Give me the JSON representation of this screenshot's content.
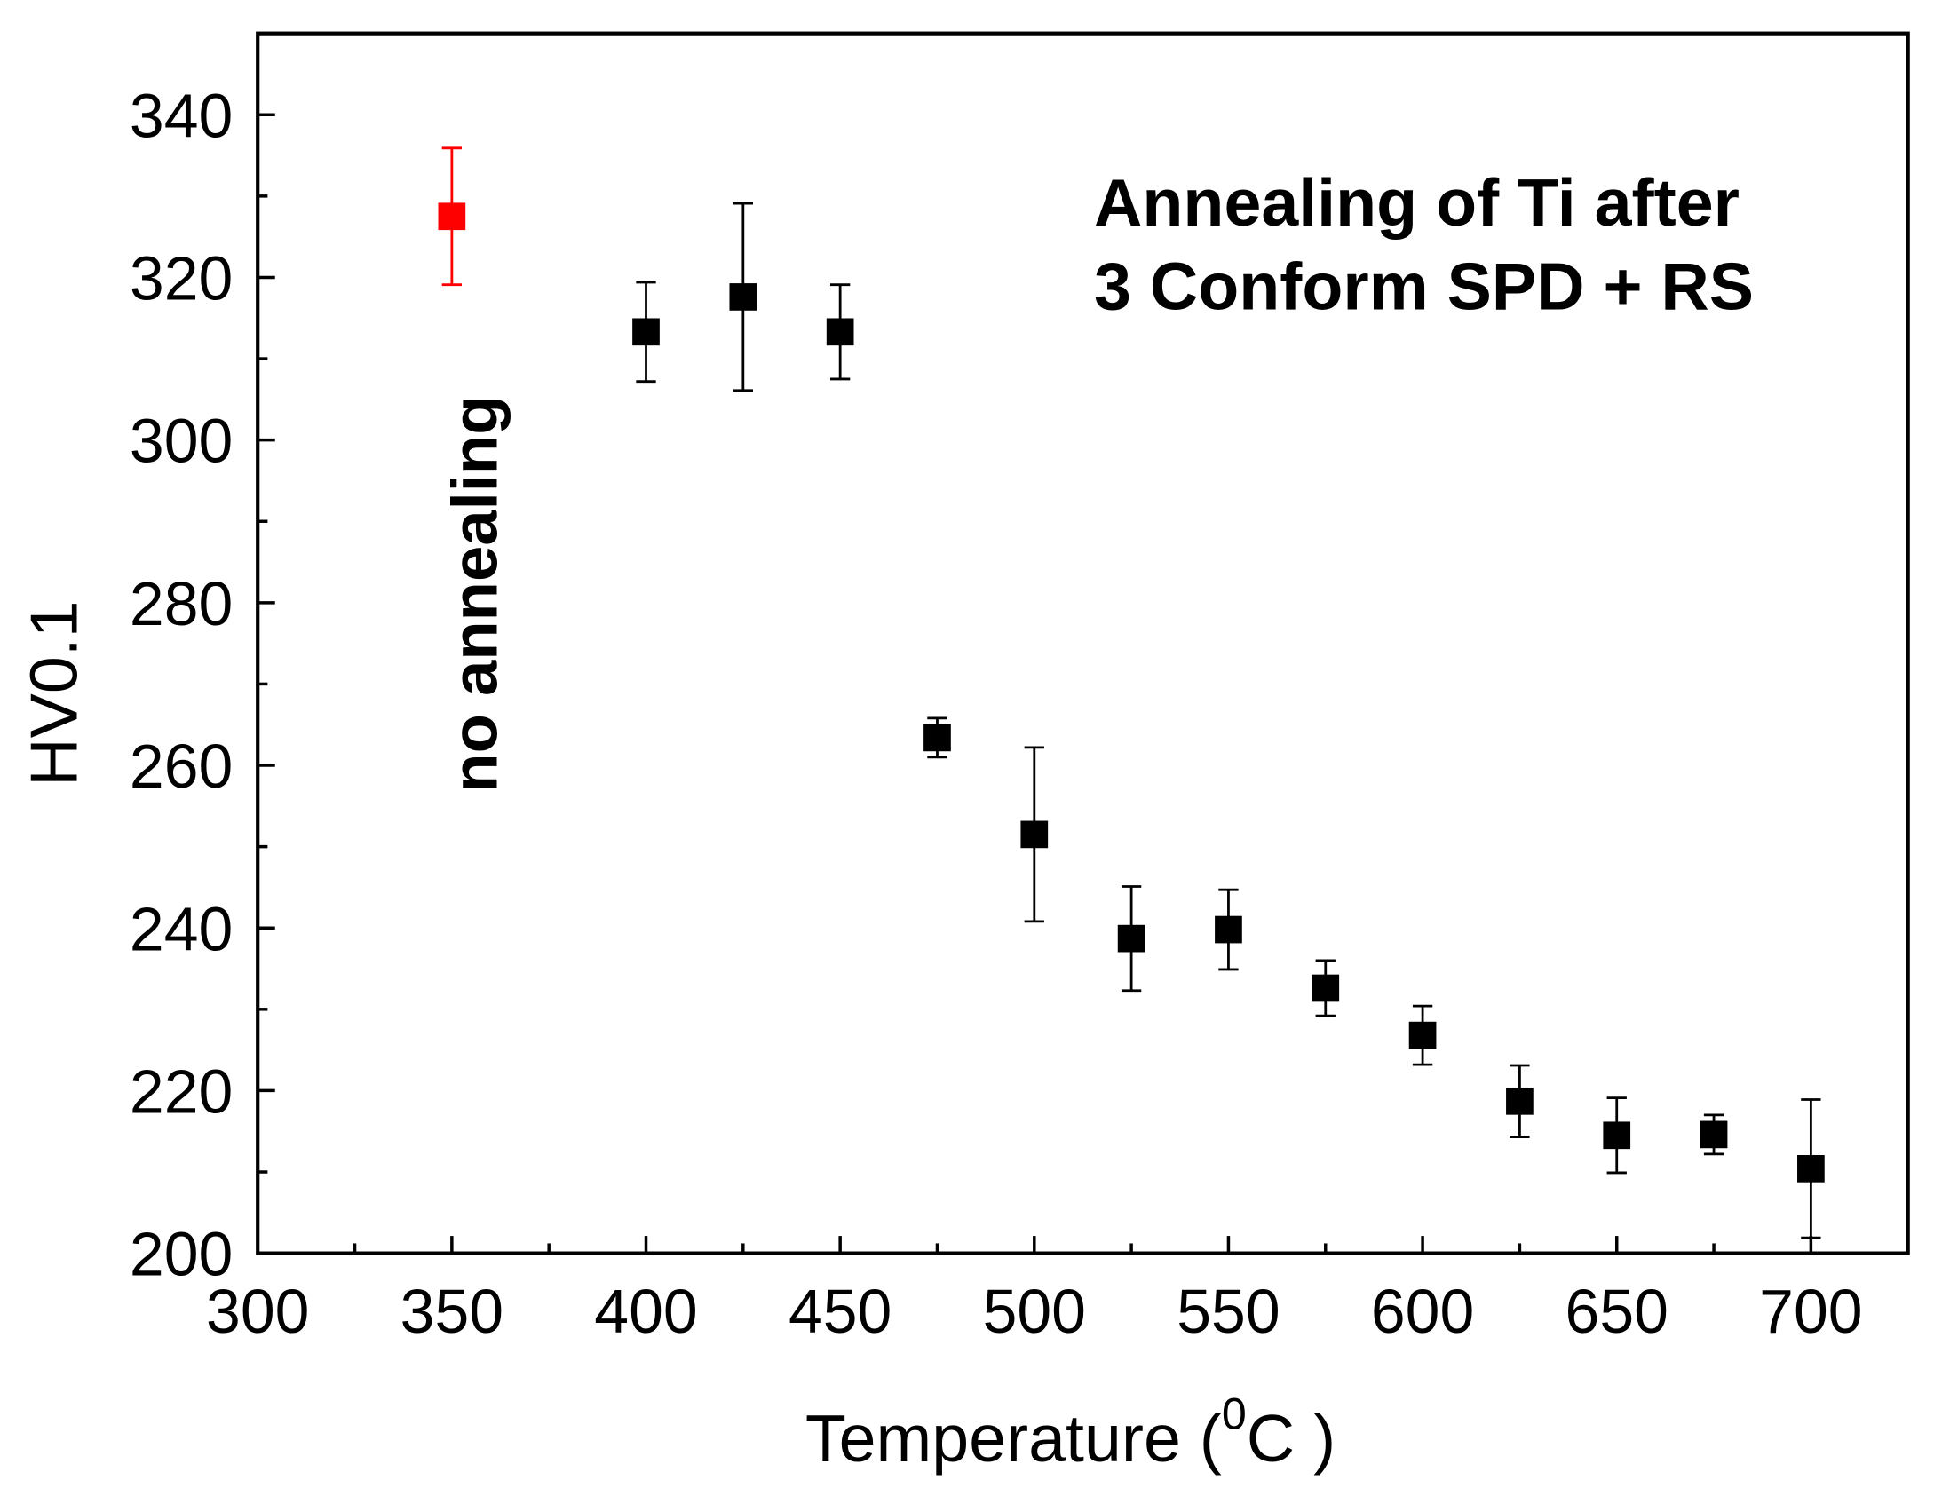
{
  "chart_data": {
    "type": "scatter",
    "title": "",
    "xlabel": {
      "prefix": "Temperature (",
      "superscript": "0",
      "suffix": "C )"
    },
    "ylabel": "HV0.1",
    "xlim": [
      300,
      725
    ],
    "ylim": [
      200,
      350
    ],
    "xticks": [
      300,
      350,
      400,
      450,
      500,
      550,
      600,
      650,
      700
    ],
    "x_minor_step": 25,
    "yticks": [
      200,
      220,
      240,
      260,
      280,
      300,
      320,
      340
    ],
    "y_minor_step": 10,
    "grid": false,
    "marker": "square",
    "error_bars": true,
    "points": [
      {
        "x": 350,
        "y": 327.5,
        "yerr": 8.4,
        "color": "#ff0000"
      },
      {
        "x": 400,
        "y": 313.3,
        "yerr": 6.1,
        "color": "#000000"
      },
      {
        "x": 425,
        "y": 317.6,
        "yerr": 11.5,
        "color": "#000000"
      },
      {
        "x": 450,
        "y": 313.3,
        "yerr": 5.8,
        "color": "#000000"
      },
      {
        "x": 475,
        "y": 263.4,
        "yerr": 2.4,
        "color": "#000000"
      },
      {
        "x": 500,
        "y": 251.5,
        "yerr": 10.7,
        "color": "#000000"
      },
      {
        "x": 525,
        "y": 238.7,
        "yerr": 6.4,
        "color": "#000000"
      },
      {
        "x": 550,
        "y": 239.8,
        "yerr": 4.9,
        "color": "#000000"
      },
      {
        "x": 575,
        "y": 232.6,
        "yerr": 3.4,
        "color": "#000000"
      },
      {
        "x": 600,
        "y": 226.8,
        "yerr": 3.6,
        "color": "#000000"
      },
      {
        "x": 625,
        "y": 218.7,
        "yerr": 4.4,
        "color": "#000000"
      },
      {
        "x": 650,
        "y": 214.5,
        "yerr": 4.6,
        "color": "#000000"
      },
      {
        "x": 675,
        "y": 214.6,
        "yerr": 2.4,
        "color": "#000000"
      },
      {
        "x": 700,
        "y": 210.4,
        "yerr": 8.5,
        "color": "#000000"
      }
    ],
    "annotations": {
      "title_lines": [
        "Annealing of Ti after",
        "3 Conform SPD + RS"
      ],
      "no_annealing": "no annealing"
    }
  },
  "colors": {
    "axis": "#000000",
    "highlight": "#ff0000",
    "default_marker": "#000000",
    "background": "#ffffff"
  }
}
